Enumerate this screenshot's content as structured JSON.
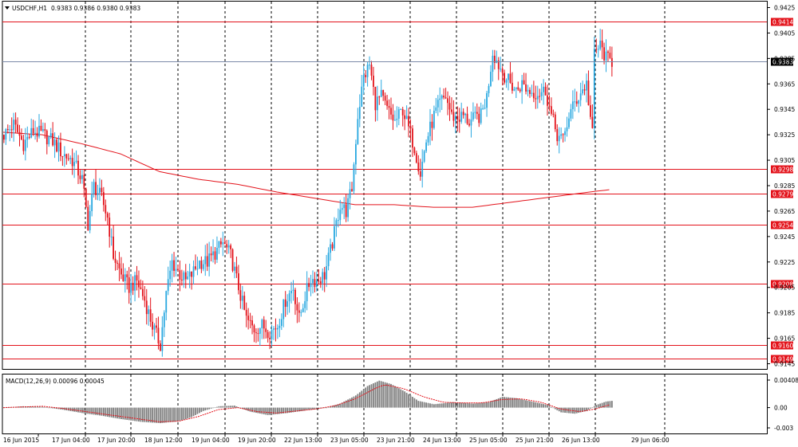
{
  "chart_data": {
    "type": "candlestick",
    "symbol_label": "USDCHF,H1",
    "ohlc_label": "0.9383 0.9386 0.9380 0.9383",
    "macd_label": "MACD(12,26,9) 0.00096 0.00045",
    "colors": {
      "up": "#29a8e0",
      "down": "#e3131b",
      "ma": "#e3131b",
      "level": "#e3131b",
      "bid": "#7b8aa8",
      "macd_hist": "#7f7f7f",
      "macd_signal": "#e3131b"
    },
    "price_axis": {
      "ylim": [
        0.9145,
        0.9425
      ],
      "ticks": [
        "0.9425",
        "0.9405",
        "0.9385",
        "0.9365",
        "0.9345",
        "0.9325",
        "0.9305",
        "0.9285",
        "0.9265",
        "0.9245",
        "0.9225",
        "0.9205",
        "0.9185",
        "0.9165",
        "0.9145"
      ]
    },
    "macd_axis": {
      "ylim": [
        -0.003,
        0.00408
      ],
      "ticks": [
        "0.00408",
        "0.00",
        "-0.003"
      ]
    },
    "time_labels": [
      "16 Jun 2015",
      "17 Jun 04:00",
      "17 Jun 20:00",
      "18 Jun 12:00",
      "19 Jun 04:00",
      "19 Jun 20:00",
      "22 Jun 13:00",
      "23 Jun 05:00",
      "23 Jun 21:00",
      "24 Jun 13:00",
      "25 Jun 05:00",
      "25 Jun 21:00",
      "26 Jun 13:00",
      "29 Jun 06:00"
    ],
    "levels": [
      "0.9414",
      "0.9298",
      "0.9279",
      "0.9254",
      "0.9208",
      "0.9160",
      "0.9149"
    ],
    "bid_price": "0.9383",
    "close_path": [
      [
        0,
        0.9325
      ],
      [
        5,
        0.9333
      ],
      [
        10,
        0.9318
      ],
      [
        15,
        0.9328
      ],
      [
        20,
        0.9325
      ],
      [
        25,
        0.932
      ],
      [
        30,
        0.931
      ],
      [
        35,
        0.9305
      ],
      [
        40,
        0.929
      ],
      [
        43,
        0.9255
      ],
      [
        46,
        0.9285
      ],
      [
        50,
        0.9275
      ],
      [
        53,
        0.926
      ],
      [
        56,
        0.923
      ],
      [
        60,
        0.9215
      ],
      [
        64,
        0.9205
      ],
      [
        68,
        0.921
      ],
      [
        72,
        0.9195
      ],
      [
        76,
        0.9175
      ],
      [
        80,
        0.916
      ],
      [
        83,
        0.92
      ],
      [
        86,
        0.9225
      ],
      [
        90,
        0.9215
      ],
      [
        93,
        0.921
      ],
      [
        96,
        0.9215
      ],
      [
        100,
        0.9225
      ],
      [
        104,
        0.9225
      ],
      [
        108,
        0.9232
      ],
      [
        112,
        0.924
      ],
      [
        116,
        0.923
      ],
      [
        120,
        0.9205
      ],
      [
        124,
        0.918
      ],
      [
        128,
        0.9172
      ],
      [
        132,
        0.9175
      ],
      [
        136,
        0.917
      ],
      [
        140,
        0.9175
      ],
      [
        144,
        0.9195
      ],
      [
        148,
        0.9205
      ],
      [
        151,
        0.918
      ],
      [
        154,
        0.9198
      ],
      [
        157,
        0.9212
      ],
      [
        160,
        0.921
      ],
      [
        164,
        0.9215
      ],
      [
        168,
        0.924
      ],
      [
        172,
        0.927
      ],
      [
        175,
        0.9265
      ],
      [
        178,
        0.9283
      ],
      [
        181,
        0.934
      ],
      [
        184,
        0.937
      ],
      [
        187,
        0.938
      ],
      [
        190,
        0.935
      ],
      [
        193,
        0.9355
      ],
      [
        196,
        0.9345
      ],
      [
        200,
        0.9335
      ],
      [
        204,
        0.9345
      ],
      [
        207,
        0.933
      ],
      [
        210,
        0.9315
      ],
      [
        213,
        0.9295
      ],
      [
        216,
        0.932
      ],
      [
        220,
        0.934
      ],
      [
        223,
        0.935
      ],
      [
        226,
        0.9355
      ],
      [
        229,
        0.934
      ],
      [
        232,
        0.9338
      ],
      [
        235,
        0.934
      ],
      [
        238,
        0.9335
      ],
      [
        241,
        0.9338
      ],
      [
        244,
        0.934
      ],
      [
        247,
        0.9355
      ],
      [
        250,
        0.939
      ],
      [
        253,
        0.938
      ],
      [
        256,
        0.9372
      ],
      [
        259,
        0.9365
      ],
      [
        262,
        0.936
      ],
      [
        265,
        0.9365
      ],
      [
        268,
        0.936
      ],
      [
        271,
        0.9358
      ],
      [
        274,
        0.9358
      ],
      [
        277,
        0.936
      ],
      [
        280,
        0.934
      ],
      [
        283,
        0.9325
      ],
      [
        286,
        0.932
      ],
      [
        289,
        0.934
      ],
      [
        292,
        0.935
      ],
      [
        295,
        0.9358
      ],
      [
        298,
        0.9365
      ],
      [
        301,
        0.9325
      ],
      [
        302,
        0.939
      ],
      [
        305,
        0.9395
      ],
      [
        308,
        0.9385
      ],
      [
        311,
        0.9383
      ]
    ],
    "ma_path": [
      [
        0,
        0.9327
      ],
      [
        20,
        0.9325
      ],
      [
        40,
        0.9318
      ],
      [
        60,
        0.931
      ],
      [
        80,
        0.9296
      ],
      [
        100,
        0.929
      ],
      [
        120,
        0.9286
      ],
      [
        140,
        0.928
      ],
      [
        160,
        0.9275
      ],
      [
        180,
        0.927
      ],
      [
        200,
        0.927
      ],
      [
        220,
        0.9268
      ],
      [
        240,
        0.9268
      ],
      [
        260,
        0.9272
      ],
      [
        280,
        0.9276
      ],
      [
        300,
        0.928
      ],
      [
        311,
        0.9282
      ]
    ],
    "macd_path": [
      [
        0,
        0.0
      ],
      [
        10,
        0.0002
      ],
      [
        20,
        0.0001
      ],
      [
        30,
        -0.0003
      ],
      [
        40,
        -0.0008
      ],
      [
        50,
        -0.0012
      ],
      [
        60,
        -0.0017
      ],
      [
        70,
        -0.0021
      ],
      [
        80,
        -0.0023
      ],
      [
        90,
        -0.002
      ],
      [
        96,
        -0.0014
      ],
      [
        102,
        -0.0005
      ],
      [
        110,
        0.0002
      ],
      [
        118,
        0.0003
      ],
      [
        126,
        -0.0006
      ],
      [
        135,
        -0.0011
      ],
      [
        145,
        -0.0008
      ],
      [
        155,
        -0.0004
      ],
      [
        165,
        0.0
      ],
      [
        172,
        0.0006
      ],
      [
        180,
        0.0018
      ],
      [
        186,
        0.0032
      ],
      [
        192,
        0.004
      ],
      [
        198,
        0.0035
      ],
      [
        205,
        0.0024
      ],
      [
        212,
        0.001
      ],
      [
        220,
        0.0005
      ],
      [
        230,
        0.0008
      ],
      [
        240,
        0.0006
      ],
      [
        248,
        0.0008
      ],
      [
        255,
        0.0016
      ],
      [
        262,
        0.0014
      ],
      [
        270,
        0.0009
      ],
      [
        278,
        0.0004
      ],
      [
        285,
        -0.0007
      ],
      [
        292,
        -0.0009
      ],
      [
        298,
        -0.0005
      ],
      [
        303,
        0.0004
      ],
      [
        308,
        0.0009
      ],
      [
        311,
        0.001
      ]
    ],
    "signal_path": [
      [
        0,
        0.0
      ],
      [
        10,
        0.0001
      ],
      [
        20,
        0.0002
      ],
      [
        30,
        -0.0001
      ],
      [
        40,
        -0.0005
      ],
      [
        50,
        -0.0009
      ],
      [
        60,
        -0.0013
      ],
      [
        70,
        -0.0017
      ],
      [
        80,
        -0.0021
      ],
      [
        90,
        -0.002
      ],
      [
        100,
        -0.0013
      ],
      [
        110,
        -0.0003
      ],
      [
        120,
        0.0
      ],
      [
        130,
        -0.0006
      ],
      [
        140,
        -0.0008
      ],
      [
        150,
        -0.0005
      ],
      [
        160,
        -0.0002
      ],
      [
        170,
        0.0003
      ],
      [
        180,
        0.0013
      ],
      [
        190,
        0.0028
      ],
      [
        195,
        0.0034
      ],
      [
        205,
        0.0028
      ],
      [
        215,
        0.0016
      ],
      [
        225,
        0.0008
      ],
      [
        235,
        0.0007
      ],
      [
        245,
        0.0007
      ],
      [
        255,
        0.0012
      ],
      [
        265,
        0.0013
      ],
      [
        275,
        0.0008
      ],
      [
        285,
        -0.0002
      ],
      [
        295,
        -0.0006
      ],
      [
        303,
        -0.0002
      ],
      [
        311,
        0.0005
      ]
    ]
  }
}
